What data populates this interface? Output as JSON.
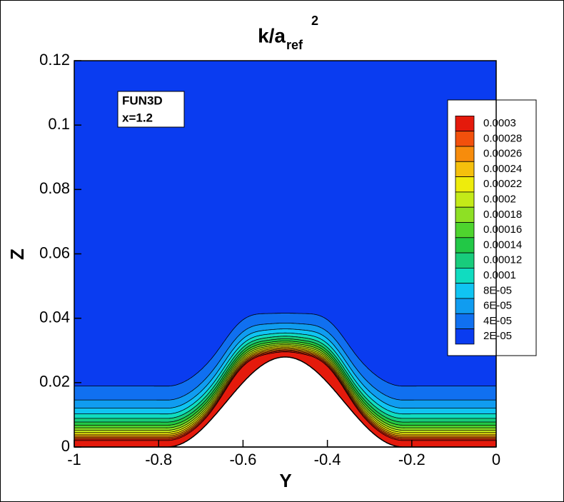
{
  "chart_data": {
    "type": "contour",
    "title": "k/a",
    "title_subscript": "ref",
    "title_superscript": "2",
    "xlabel": "Y",
    "ylabel": "Z",
    "annotation": [
      "FUN3D",
      "x=1.2"
    ],
    "xlim": [
      -1,
      0
    ],
    "ylim": [
      0,
      0.12
    ],
    "xticks": [
      -1,
      -0.8,
      -0.6,
      -0.4,
      -0.2,
      0
    ],
    "yticks": [
      0,
      0.02,
      0.04,
      0.06,
      0.08,
      0.1,
      0.12
    ],
    "levels": [
      0.0003,
      0.00028,
      0.00026,
      0.00024,
      0.00022,
      0.0002,
      0.00018,
      0.00016,
      0.00014,
      0.00012,
      0.0001,
      {
        "value": 8e-05,
        "label": "8E-05"
      },
      {
        "value": 6e-05,
        "label": "6E-05"
      },
      {
        "value": 4e-05,
        "label": "4E-05"
      },
      {
        "value": 2e-05,
        "label": "2E-05"
      }
    ],
    "colors": [
      "#e41a0c",
      "#f2500c",
      "#f78c0c",
      "#f5c00c",
      "#eeec0c",
      "#c4ea18",
      "#8ee024",
      "#4ed42e",
      "#22c846",
      "#18cc7c",
      "#10dcc0",
      "#10c4f2",
      "#109cf0",
      "#1070f0",
      "#0a3cf0"
    ]
  }
}
